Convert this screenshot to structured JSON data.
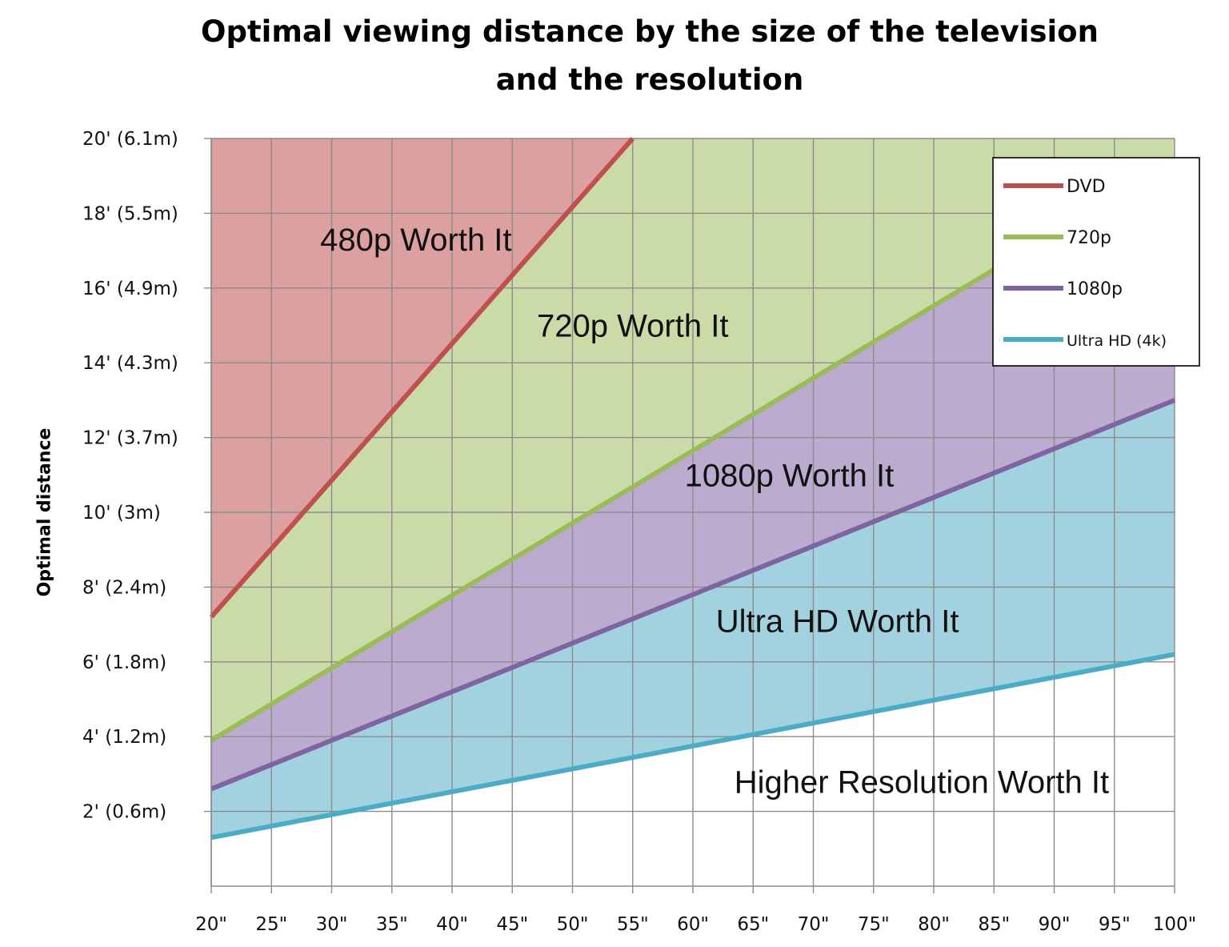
{
  "chart_data": {
    "type": "area",
    "title_lines": [
      "Optimal viewing distance by the size of the television",
      "and the resolution"
    ],
    "ylabel": "Optimal distance",
    "xlabel": "",
    "x_ticks": [
      "20\"",
      "25\"",
      "30\"",
      "35\"",
      "40\"",
      "45\"",
      "50\"",
      "55\"",
      "60\"",
      "65\"",
      "70\"",
      "75\"",
      "80\"",
      "85\"",
      "90\"",
      "95\"",
      "100\""
    ],
    "y_ticks": [
      {
        "value": 2,
        "label": "2' (0.6m)"
      },
      {
        "value": 4,
        "label": "4' (1.2m)"
      },
      {
        "value": 6,
        "label": "6' (1.8m)"
      },
      {
        "value": 8,
        "label": "8' (2.4m)"
      },
      {
        "value": 10,
        "label": "10' (3m)"
      },
      {
        "value": 12,
        "label": "12' (3.7m)"
      },
      {
        "value": 14,
        "label": "14' (4.3m)"
      },
      {
        "value": 16,
        "label": "16' (4.9m)"
      },
      {
        "value": 18,
        "label": "18' (5.5m)"
      },
      {
        "value": 20,
        "label": "20' (6.1m)"
      }
    ],
    "xlim": [
      20,
      100
    ],
    "ylim": [
      0,
      20
    ],
    "grid": true,
    "legend_position": "top-right",
    "series": [
      {
        "name": "DVD",
        "color": "#C0504D",
        "x": [
          20,
          55
        ],
        "y": [
          7.2,
          20.0
        ]
      },
      {
        "name": "720p",
        "color": "#9BBB59",
        "x": [
          20,
          100
        ],
        "y": [
          3.9,
          19.4
        ]
      },
      {
        "name": "1080p",
        "color": "#8064A2",
        "x": [
          20,
          100
        ],
        "y": [
          2.6,
          13.0
        ]
      },
      {
        "name": "Ultra HD (4k)",
        "color": "#4BACC6",
        "x": [
          20,
          100
        ],
        "y": [
          1.3,
          6.2
        ]
      }
    ],
    "regions": [
      {
        "label": "480p Worth It",
        "fill": "#DDA0A0",
        "x": 37,
        "y": 17.0
      },
      {
        "label": "720p Worth It",
        "fill": "#CBDBA8",
        "x": 55,
        "y": 14.7
      },
      {
        "label": "1080p Worth It",
        "fill": "#BAABCF",
        "x": 68,
        "y": 10.7
      },
      {
        "label": "Ultra HD Worth It",
        "fill": "#A2D2E0",
        "x": 72,
        "y": 6.8
      },
      {
        "label": "Higher Resolution Worth It",
        "fill": "#FFFFFF",
        "x": 79,
        "y": 2.5
      }
    ]
  }
}
